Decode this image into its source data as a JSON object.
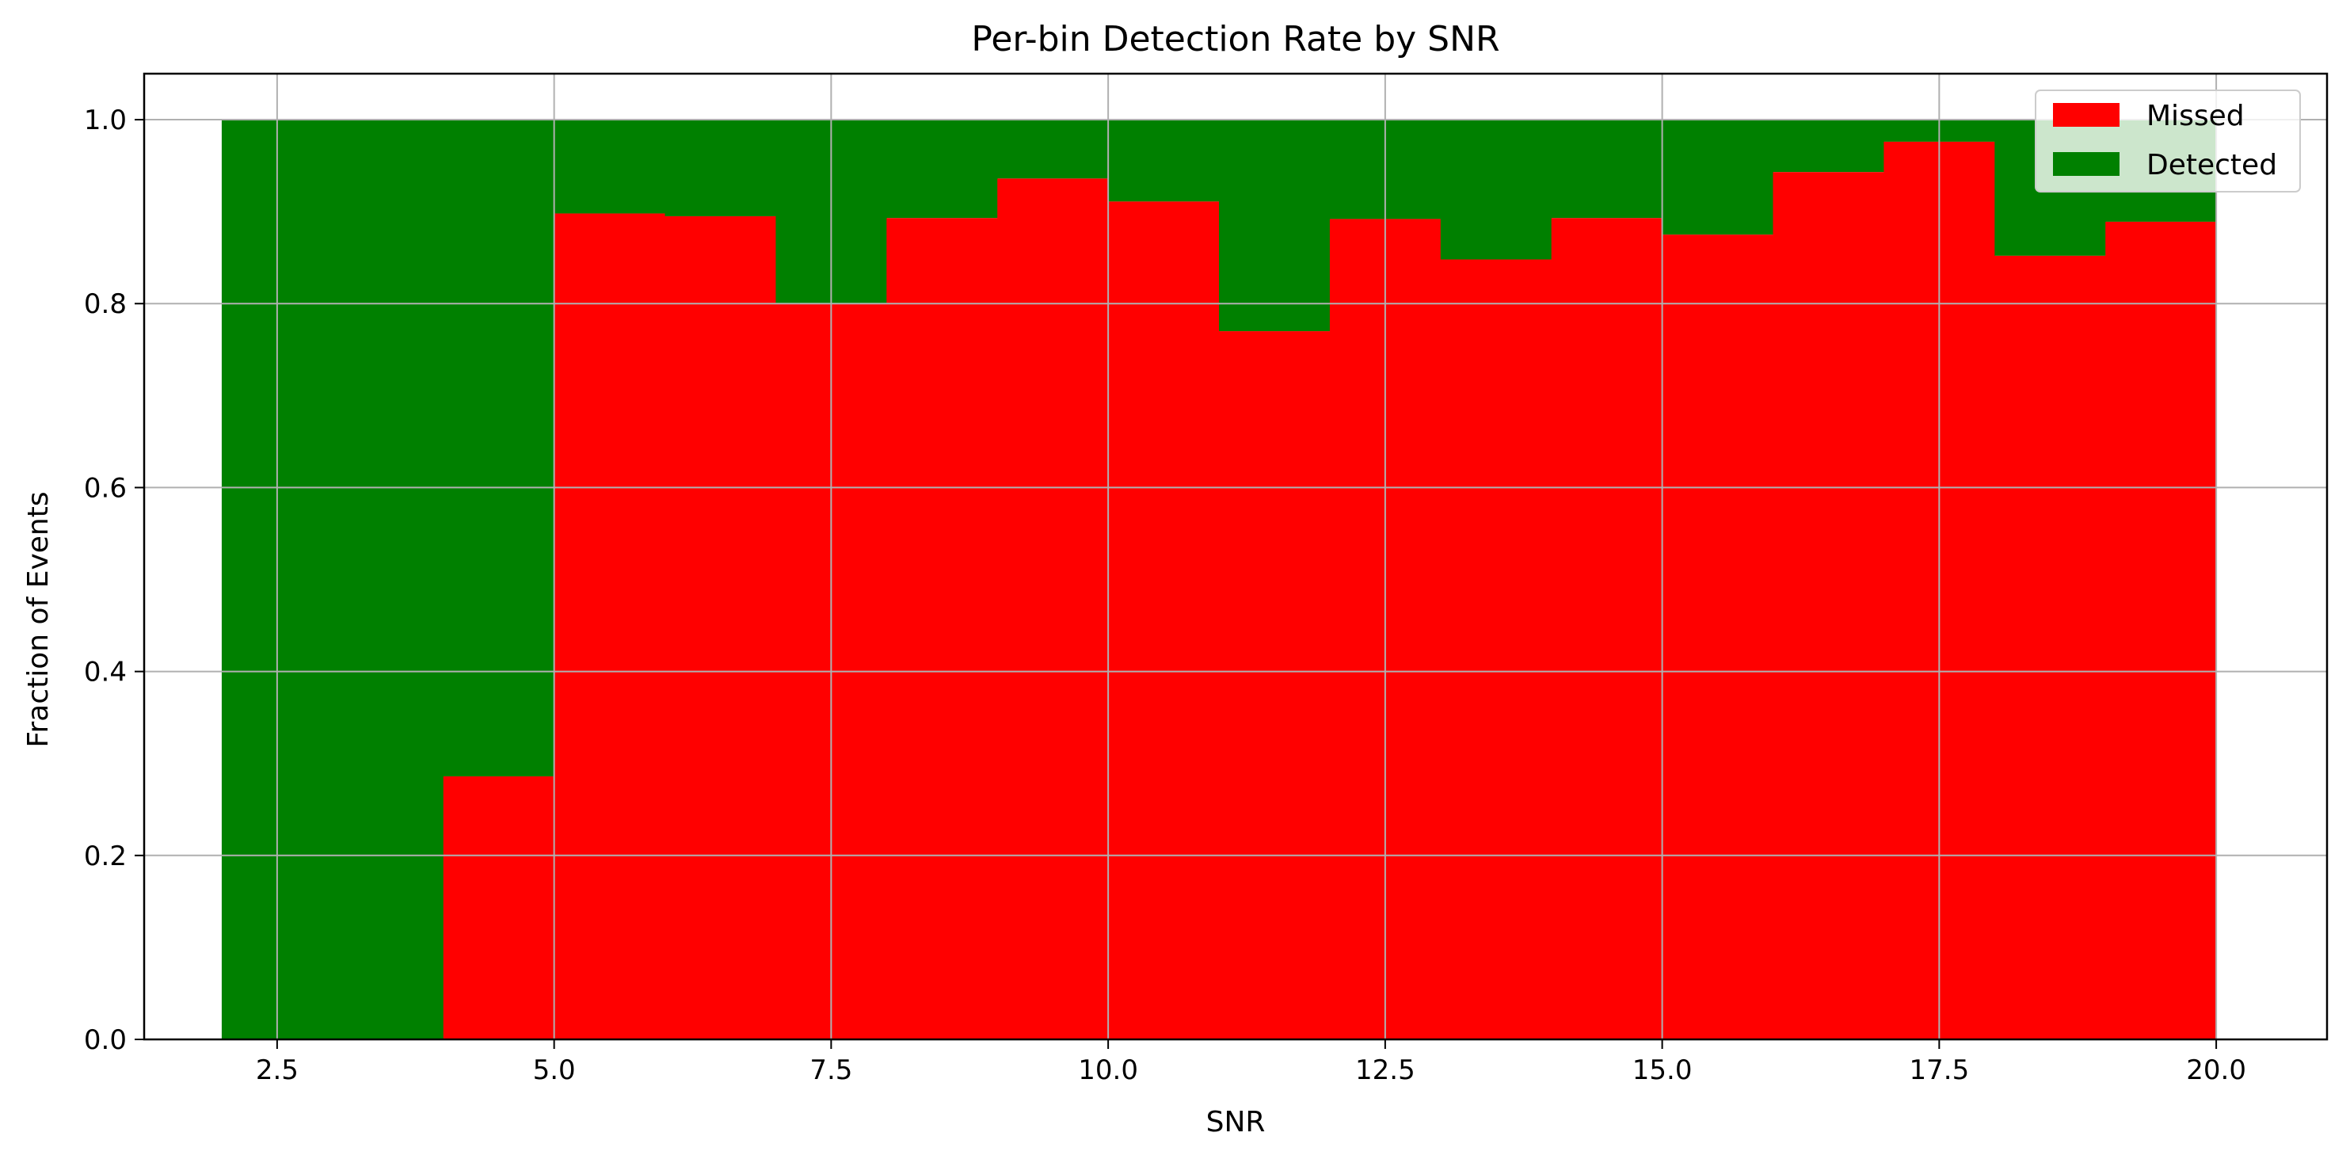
{
  "chart_data": {
    "type": "bar",
    "title": "Per-bin Detection Rate by SNR",
    "xlabel": "SNR",
    "ylabel": "Fraction of Events",
    "xlim": [
      1.3,
      21.0
    ],
    "ylim": [
      0.0,
      1.05
    ],
    "grid": true,
    "legend_position": "top-right",
    "x_ticks": [
      2.5,
      5.0,
      7.5,
      10.0,
      12.5,
      15.0,
      17.5,
      20.0
    ],
    "x_tick_labels": [
      "2.5",
      "5.0",
      "7.5",
      "10.0",
      "12.5",
      "15.0",
      "17.5",
      "20.0"
    ],
    "y_ticks": [
      0.0,
      0.2,
      0.4,
      0.6,
      0.8,
      1.0
    ],
    "y_tick_labels": [
      "0.0",
      "0.2",
      "0.4",
      "0.6",
      "0.8",
      "1.0"
    ],
    "bins": [
      {
        "x0": 2,
        "x1": 3,
        "missed": 0.0
      },
      {
        "x0": 3,
        "x1": 4,
        "missed": 0.0
      },
      {
        "x0": 4,
        "x1": 5,
        "missed": 0.286
      },
      {
        "x0": 5,
        "x1": 6,
        "missed": 0.898
      },
      {
        "x0": 6,
        "x1": 7,
        "missed": 0.895
      },
      {
        "x0": 7,
        "x1": 8,
        "missed": 0.8
      },
      {
        "x0": 8,
        "x1": 9,
        "missed": 0.893
      },
      {
        "x0": 9,
        "x1": 10,
        "missed": 0.936
      },
      {
        "x0": 10,
        "x1": 11,
        "missed": 0.911
      },
      {
        "x0": 11,
        "x1": 12,
        "missed": 0.77
      },
      {
        "x0": 12,
        "x1": 13,
        "missed": 0.892
      },
      {
        "x0": 13,
        "x1": 14,
        "missed": 0.848
      },
      {
        "x0": 14,
        "x1": 15,
        "missed": 0.893
      },
      {
        "x0": 15,
        "x1": 16,
        "missed": 0.875
      },
      {
        "x0": 16,
        "x1": 17,
        "missed": 0.943
      },
      {
        "x0": 17,
        "x1": 18,
        "missed": 0.976
      },
      {
        "x0": 18,
        "x1": 19,
        "missed": 0.852
      },
      {
        "x0": 19,
        "x1": 20,
        "missed": 0.889
      }
    ],
    "series": [
      {
        "name": "Missed",
        "color": "#ff0000",
        "field": "missed"
      },
      {
        "name": "Detected",
        "color": "#008000",
        "field": "detected"
      }
    ]
  }
}
